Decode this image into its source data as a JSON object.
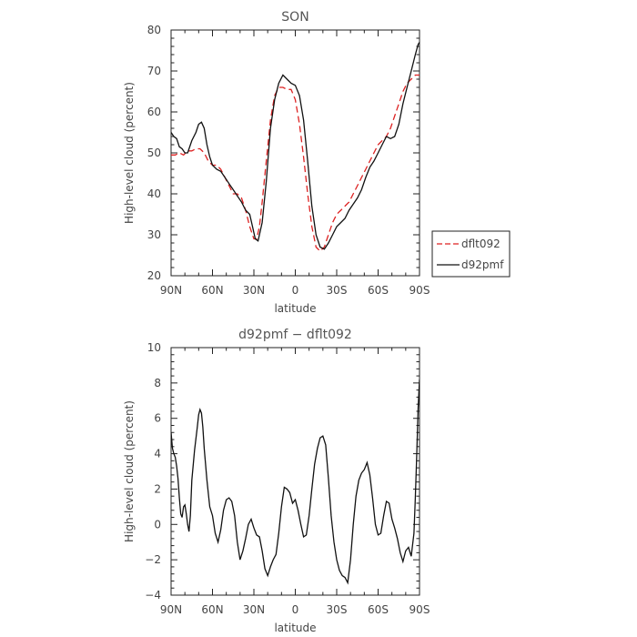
{
  "chart_data": [
    {
      "type": "line",
      "title": "SON",
      "xlabel": "latitude",
      "ylabel": "High-level cloud (percent)",
      "xlim": [
        90,
        -90
      ],
      "ylim": [
        20,
        80
      ],
      "x_ticks": [
        90,
        60,
        30,
        0,
        -30,
        -60,
        -90
      ],
      "x_tick_labels": [
        "90N",
        "60N",
        "30N",
        "0",
        "30S",
        "60S",
        "90S"
      ],
      "y_ticks": [
        20,
        30,
        40,
        50,
        60,
        70,
        80
      ],
      "y_tick_labels": [
        "20",
        "30",
        "40",
        "50",
        "60",
        "70",
        "80"
      ],
      "legend": {
        "placement": "right",
        "entries": [
          {
            "series": "dflt092",
            "label": "dflt092"
          },
          {
            "series": "d92pmf",
            "label": "d92pmf"
          }
        ]
      },
      "series": [
        {
          "name": "dflt092",
          "color": "#dd2222",
          "dash": true,
          "x": [
            90,
            87,
            84,
            81,
            78,
            75,
            72,
            69,
            66,
            63,
            60,
            57,
            54,
            51,
            48,
            45,
            42,
            39,
            36,
            33,
            30,
            28,
            26,
            24,
            21,
            18,
            15,
            12,
            9,
            6,
            3,
            0,
            -3,
            -6,
            -9,
            -12,
            -15,
            -18,
            -21,
            -24,
            -27,
            -30,
            -33,
            -36,
            -39,
            -42,
            -45,
            -48,
            -51,
            -54,
            -57,
            -60,
            -63,
            -66,
            -69,
            -72,
            -75,
            -78,
            -81,
            -84,
            -87,
            -90
          ],
          "y": [
            49.5,
            49.5,
            50,
            49.5,
            50.5,
            50.5,
            51,
            51,
            50,
            48,
            47,
            47,
            46,
            44,
            42,
            40,
            40,
            39,
            36,
            32,
            29,
            29,
            32,
            38,
            48,
            58,
            64,
            66,
            66,
            65.5,
            65.5,
            63,
            57,
            49,
            40,
            32,
            27,
            26,
            27,
            30,
            33,
            35,
            36,
            37,
            38,
            40,
            42,
            44,
            46,
            48,
            50,
            52,
            53,
            54,
            56,
            59,
            62,
            65,
            67,
            68,
            69,
            69
          ]
        },
        {
          "name": "d92pmf",
          "color": "#111111",
          "dash": false,
          "x": [
            90,
            88,
            86,
            84,
            82,
            80,
            78,
            75,
            72,
            70,
            68,
            66,
            64,
            62,
            60,
            57,
            54,
            51,
            48,
            45,
            42,
            39,
            36,
            33,
            31,
            29,
            27,
            24,
            21,
            18,
            15,
            12,
            9,
            6,
            3,
            0,
            -3,
            -6,
            -9,
            -12,
            -15,
            -18,
            -21,
            -24,
            -27,
            -30,
            -33,
            -36,
            -39,
            -42,
            -45,
            -48,
            -51,
            -54,
            -57,
            -60,
            -63,
            -66,
            -69,
            -72,
            -75,
            -78,
            -81,
            -84,
            -87,
            -89,
            -90
          ],
          "y": [
            55,
            54,
            53.5,
            51.5,
            51,
            50,
            50,
            53,
            55,
            57,
            57.5,
            56,
            52,
            49,
            47,
            46,
            45.5,
            44,
            42.5,
            41,
            39.5,
            38,
            36,
            35,
            32,
            29,
            28.5,
            33,
            43,
            56,
            63,
            67,
            69,
            68,
            67,
            66.5,
            64,
            58,
            48,
            37,
            30,
            27,
            26.5,
            28,
            30,
            32,
            33,
            34,
            36,
            37.5,
            39,
            41,
            44,
            46.5,
            48,
            50,
            52,
            54,
            53.5,
            54,
            57,
            62,
            66,
            70,
            74,
            76.5,
            77
          ]
        }
      ]
    },
    {
      "type": "line",
      "title": "d92pmf − dflt092",
      "xlabel": "latitude",
      "ylabel": "High-level cloud (percent)",
      "xlim": [
        90,
        -90
      ],
      "ylim": [
        -4,
        10
      ],
      "x_ticks": [
        90,
        60,
        30,
        0,
        -30,
        -60,
        -90
      ],
      "x_tick_labels": [
        "90N",
        "60N",
        "30N",
        "0",
        "30S",
        "60S",
        "90S"
      ],
      "y_ticks": [
        -4,
        -2,
        0,
        2,
        4,
        6,
        8,
        10
      ],
      "y_tick_labels": [
        "−4",
        "−2",
        "0",
        "2",
        "4",
        "6",
        "8",
        "10"
      ],
      "series": [
        {
          "name": "d92pmf − dflt092",
          "color": "#111111",
          "dash": false,
          "x": [
            90,
            89,
            88,
            87,
            86,
            85,
            84,
            83,
            82,
            81,
            80,
            79,
            78,
            77,
            76,
            75,
            73,
            71,
            70,
            69,
            68,
            67,
            66,
            64,
            62,
            60,
            58,
            56,
            54,
            52,
            50,
            48,
            46,
            44,
            42,
            40,
            38,
            36,
            34,
            32,
            30,
            28,
            26,
            24,
            22,
            20,
            18,
            16,
            14,
            12,
            10,
            8,
            6,
            4,
            2,
            0,
            -2,
            -4,
            -6,
            -8,
            -10,
            -12,
            -14,
            -16,
            -18,
            -20,
            -22,
            -24,
            -26,
            -28,
            -30,
            -32,
            -34,
            -36,
            -38,
            -40,
            -42,
            -44,
            -46,
            -48,
            -50,
            -52,
            -54,
            -56,
            -58,
            -60,
            -62,
            -64,
            -66,
            -68,
            -70,
            -72,
            -74,
            -76,
            -78,
            -80,
            -82,
            -84,
            -86,
            -87,
            -88,
            -89,
            -90
          ],
          "y": [
            5.2,
            4.3,
            4,
            3.8,
            3.3,
            2.6,
            1.5,
            0.6,
            0.4,
            1,
            1.1,
            0.6,
            0,
            -0.4,
            0.5,
            2.5,
            4.2,
            5.5,
            6.2,
            6.5,
            6.3,
            5.5,
            4.3,
            2.5,
            1,
            0.5,
            -0.5,
            -1,
            -0.3,
            0.8,
            1.4,
            1.5,
            1.3,
            0.5,
            -1,
            -2,
            -1.5,
            -0.8,
            0,
            0.3,
            -0.2,
            -0.6,
            -0.7,
            -1.5,
            -2.5,
            -2.9,
            -2.4,
            -2,
            -1.7,
            -0.5,
            1,
            2.1,
            2,
            1.8,
            1.2,
            1.4,
            0.8,
            0,
            -0.7,
            -0.6,
            0.5,
            2,
            3.4,
            4.3,
            4.9,
            5,
            4.5,
            2.6,
            0.5,
            -1,
            -2,
            -2.6,
            -2.9,
            -3,
            -3.3,
            -2,
            0,
            1.6,
            2.5,
            2.9,
            3.1,
            3.5,
            2.8,
            1.5,
            0,
            -0.6,
            -0.5,
            0.5,
            1.3,
            1.2,
            0.3,
            -0.2,
            -0.8,
            -1.6,
            -2.1,
            -1.5,
            -1.3,
            -1.8,
            -0.5,
            1.5,
            4,
            6.6,
            8.2
          ]
        }
      ]
    }
  ]
}
